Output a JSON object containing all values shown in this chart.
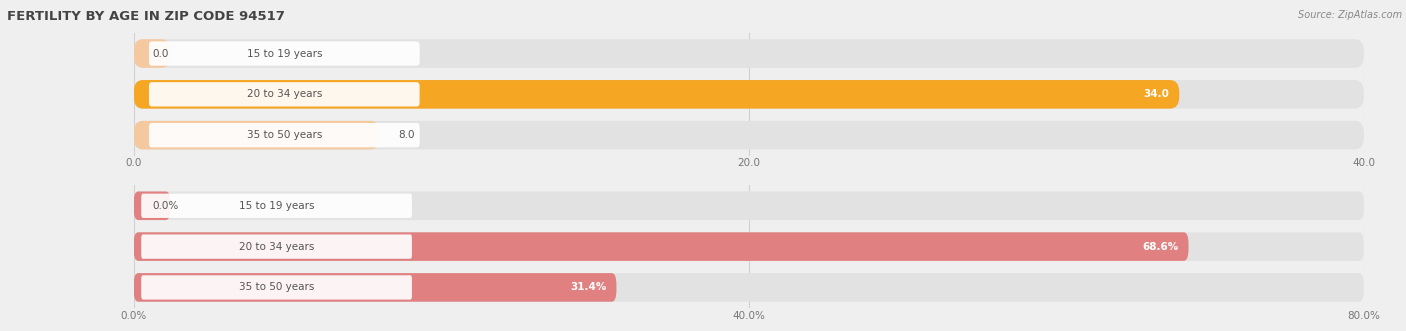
{
  "title": "FERTILITY BY AGE IN ZIP CODE 94517",
  "source": "Source: ZipAtlas.com",
  "chart1": {
    "categories": [
      "15 to 19 years",
      "20 to 34 years",
      "35 to 50 years"
    ],
    "values": [
      0.0,
      34.0,
      8.0
    ],
    "bar_colors": [
      "#f5c9a0",
      "#f5a623",
      "#f5c9a0"
    ],
    "xlim": [
      0,
      40
    ],
    "xticks": [
      0.0,
      20.0,
      40.0
    ],
    "xtick_labels": [
      "0.0",
      "20.0",
      "40.0"
    ],
    "value_labels": [
      "0.0",
      "34.0",
      "8.0"
    ],
    "value_inside": [
      false,
      true,
      false
    ]
  },
  "chart2": {
    "categories": [
      "15 to 19 years",
      "20 to 34 years",
      "35 to 50 years"
    ],
    "values": [
      0.0,
      68.6,
      31.4
    ],
    "bar_colors": [
      "#e08080",
      "#e08080",
      "#e08080"
    ],
    "xlim": [
      0,
      80
    ],
    "xticks": [
      0.0,
      40.0,
      80.0
    ],
    "xtick_labels": [
      "0.0%",
      "40.0%",
      "80.0%"
    ],
    "value_labels": [
      "0.0%",
      "68.6%",
      "31.4%"
    ],
    "value_inside": [
      false,
      true,
      true
    ]
  },
  "bg_color": "#efefef",
  "bar_bg_color": "#e2e2e2",
  "bar_height": 0.7,
  "label_fontsize": 7.5,
  "tick_fontsize": 7.5,
  "title_fontsize": 9.5,
  "source_fontsize": 7.0,
  "label_box_color": "#ffffff",
  "label_text_color": "#555555",
  "grid_color": "#d0d0d0"
}
